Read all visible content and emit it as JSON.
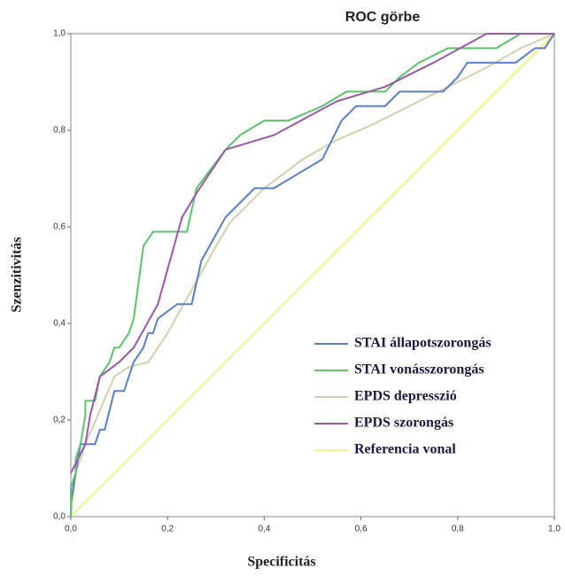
{
  "chart_data": {
    "type": "line",
    "title": "ROC görbe",
    "x_label": "Specificitás",
    "y_label": "Szenzitivitás",
    "xlim": [
      0,
      1
    ],
    "ylim": [
      0,
      1
    ],
    "xticks": [
      {
        "value": 0,
        "label": "0,0"
      },
      {
        "value": 0.2,
        "label": "0,2"
      },
      {
        "value": 0.4,
        "label": "0,4"
      },
      {
        "value": 0.6,
        "label": "0,6"
      },
      {
        "value": 0.8,
        "label": "0,8"
      },
      {
        "value": 1,
        "label": "1,0"
      }
    ],
    "yticks": [
      {
        "value": 0,
        "label": "0,0"
      },
      {
        "value": 0.2,
        "label": "0,2"
      },
      {
        "value": 0.4,
        "label": "0,4"
      },
      {
        "value": 0.6,
        "label": "0,6"
      },
      {
        "value": 0.8,
        "label": "0,8"
      },
      {
        "value": 1,
        "label": "1,0"
      }
    ],
    "grid": false,
    "legend": "lower right",
    "series": [
      {
        "name": "STAI állapotszorongás",
        "color": "#5b7fc7",
        "x": [
          0,
          0,
          0.01,
          0.02,
          0.05,
          0.06,
          0.07,
          0.09,
          0.11,
          0.13,
          0.15,
          0.16,
          0.17,
          0.18,
          0.22,
          0.25,
          0.27,
          0.32,
          0.35,
          0.38,
          0.42,
          0.47,
          0.52,
          0.56,
          0.59,
          0.65,
          0.68,
          0.77,
          0.8,
          0.82,
          0.92,
          0.96,
          0.98,
          1
        ],
        "values": [
          0,
          0.03,
          0.09,
          0.15,
          0.15,
          0.18,
          0.18,
          0.26,
          0.26,
          0.32,
          0.35,
          0.38,
          0.38,
          0.41,
          0.44,
          0.44,
          0.53,
          0.62,
          0.65,
          0.68,
          0.68,
          0.71,
          0.74,
          0.82,
          0.85,
          0.85,
          0.88,
          0.88,
          0.91,
          0.94,
          0.94,
          0.97,
          0.97,
          1
        ]
      },
      {
        "name": "STAI vonásszorongás",
        "color": "#5cc36b",
        "x": [
          0,
          0,
          0.01,
          0.01,
          0.02,
          0.03,
          0.03,
          0.05,
          0.06,
          0.08,
          0.09,
          0.1,
          0.12,
          0.13,
          0.15,
          0.17,
          0.24,
          0.26,
          0.32,
          0.35,
          0.4,
          0.45,
          0.52,
          0.57,
          0.65,
          0.68,
          0.72,
          0.78,
          0.88,
          0.93,
          1
        ],
        "values": [
          0,
          0.06,
          0.09,
          0.12,
          0.15,
          0.21,
          0.24,
          0.24,
          0.29,
          0.32,
          0.35,
          0.35,
          0.38,
          0.41,
          0.56,
          0.59,
          0.59,
          0.68,
          0.76,
          0.79,
          0.82,
          0.82,
          0.85,
          0.88,
          0.88,
          0.91,
          0.94,
          0.97,
          0.97,
          1,
          1
        ]
      },
      {
        "name": "EPDS depresszió",
        "color": "#d4cfac",
        "x": [
          0,
          0.01,
          0.03,
          0.06,
          0.09,
          0.12,
          0.16,
          0.2,
          0.25,
          0.3,
          0.33,
          0.4,
          0.48,
          0.55,
          0.62,
          0.7,
          0.78,
          0.86,
          0.93,
          1
        ],
        "values": [
          0,
          0.09,
          0.15,
          0.22,
          0.29,
          0.31,
          0.32,
          0.38,
          0.47,
          0.56,
          0.61,
          0.68,
          0.74,
          0.78,
          0.81,
          0.85,
          0.89,
          0.93,
          0.97,
          1
        ]
      },
      {
        "name": "EPDS szorongás",
        "color": "#9b57a8",
        "x": [
          0,
          0.03,
          0.04,
          0.06,
          0.1,
          0.13,
          0.18,
          0.23,
          0.26,
          0.32,
          0.42,
          0.55,
          0.65,
          0.75,
          0.86,
          1
        ],
        "values": [
          0.09,
          0.15,
          0.21,
          0.29,
          0.32,
          0.35,
          0.44,
          0.62,
          0.67,
          0.76,
          0.79,
          0.86,
          0.89,
          0.94,
          1,
          1
        ]
      },
      {
        "name": "Referencia vonal",
        "color": "#f5f08a",
        "x": [
          0,
          1
        ],
        "values": [
          0,
          1
        ]
      }
    ]
  }
}
